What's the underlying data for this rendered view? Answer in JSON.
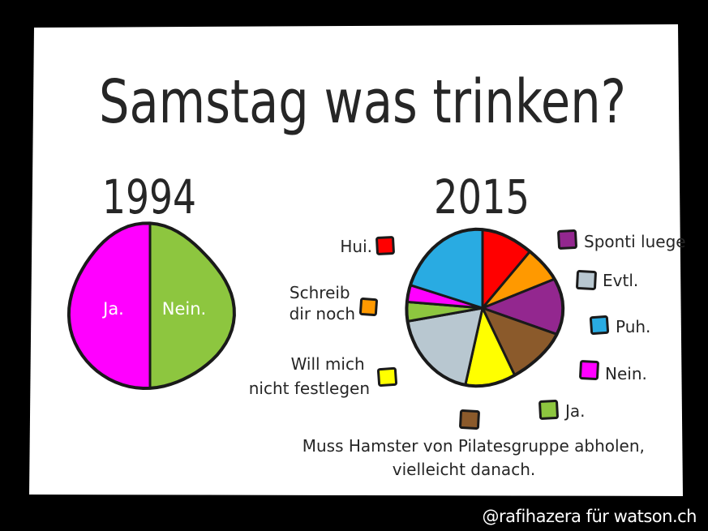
{
  "title": "Samstag was trinken?",
  "credit": "@rafihazera für watson.ch",
  "chart_data": [
    {
      "type": "pie",
      "title": "1994",
      "slices": [
        {
          "label": "Ja.",
          "value": 50,
          "color": "#8dc63f"
        },
        {
          "label": "Nein.",
          "value": 50,
          "color": "#ff00ff"
        }
      ]
    },
    {
      "type": "pie",
      "title": "2015",
      "slices": [
        {
          "label": "Hui.",
          "value": 11.1,
          "color": "#ff0000"
        },
        {
          "label": "Schreib dir noch",
          "value": 7.8,
          "color": "#ff9900"
        },
        {
          "label": "Sponti luege",
          "value": 11.5,
          "color": "#93278f"
        },
        {
          "label": "Muss Hamster von Pilatesgruppe abholen, vielleicht danach.",
          "value": 12.5,
          "color": "#8b5a2b"
        },
        {
          "label": "Will mich nicht festlegen",
          "value": 10.6,
          "color": "#ffff00"
        },
        {
          "label": "Evtl.",
          "value": 18.7,
          "color": "#b8c7d0"
        },
        {
          "label": "Ja.",
          "value": 4.1,
          "color": "#8dc63f"
        },
        {
          "label": "Nein.",
          "value": 3.6,
          "color": "#ff00ff"
        },
        {
          "label": "Puh.",
          "value": 20.1,
          "color": "#29abe2"
        }
      ]
    }
  ]
}
